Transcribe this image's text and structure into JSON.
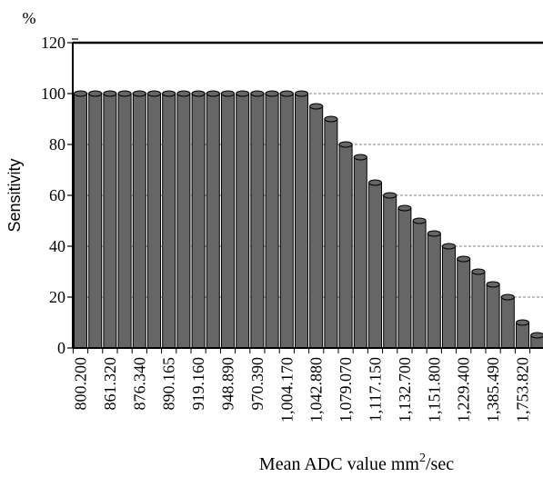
{
  "chart_data": {
    "type": "bar",
    "title": "",
    "unit_label": "%",
    "ylabel": "Sensitivity",
    "xlabel_main": "Mean ADC value mm",
    "xlabel_sup": "2",
    "xlabel_suffix": "/sec",
    "ylim": [
      0,
      120
    ],
    "yticks": [
      "0",
      "20",
      "40",
      "60",
      "80",
      "100",
      "120"
    ],
    "grid": "dashed horizontal",
    "bar_color": "#666666",
    "x_tick_labels": [
      "800.200",
      "861.320",
      "876.340",
      "890.165",
      "919.160",
      "948.890",
      "970.390",
      "1,004.170",
      "1,042.880",
      "1,079.070",
      "1,117.150",
      "1,132.700",
      "1,151.800",
      "1,229.400",
      "1,385.490",
      "1,753.820"
    ],
    "values": [
      100,
      100,
      100,
      100,
      100,
      100,
      100,
      100,
      100,
      100,
      100,
      100,
      100,
      100,
      100,
      100,
      95,
      90,
      80,
      75,
      65,
      60,
      55,
      50,
      45,
      40,
      35,
      30,
      25,
      20,
      10,
      5
    ]
  }
}
